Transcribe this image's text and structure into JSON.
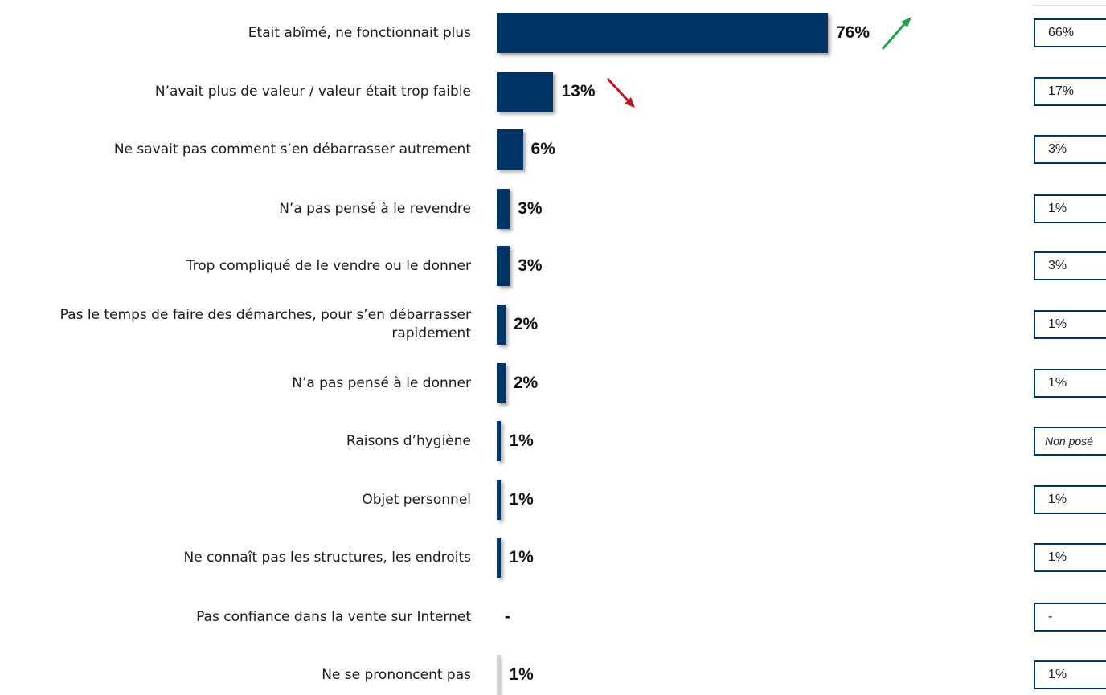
{
  "chart_data": {
    "type": "bar",
    "orientation": "horizontal",
    "categories": [
      "Etait abîmé, ne fonctionnait plus",
      "N’avait plus de valeur / valeur était trop faible",
      "Ne savait pas comment s’en débarrasser autrement",
      "N’a pas pensé à le revendre",
      "Trop compliqué de le vendre ou le donner",
      "Pas le temps de faire des démarches, pour s’en débarrasser rapidement",
      "N’a pas pensé à le donner",
      "Raisons d’hygiène",
      "Objet personnel",
      "Ne connaît pas les structures, les endroits",
      "Pas confiance dans la vente sur Internet",
      "Ne se prononcent pas"
    ],
    "values": [
      76,
      13,
      6,
      3,
      3,
      2,
      2,
      1,
      1,
      1,
      null,
      1
    ],
    "value_labels": [
      "76%",
      "13%",
      "6%",
      "3%",
      "3%",
      "2%",
      "2%",
      "1%",
      "1%",
      "1%",
      "-",
      "1%"
    ],
    "comparison_labels": [
      "66%",
      "17%",
      "3%",
      "1%",
      "3%",
      "1%",
      "1%",
      "Non posé",
      "1%",
      "1%",
      "-",
      "1%"
    ],
    "trend": [
      "up",
      "down",
      null,
      null,
      null,
      null,
      null,
      null,
      null,
      null,
      null,
      null
    ],
    "xlim": [
      0,
      76
    ],
    "grid": false,
    "colors": {
      "bar": "#003366",
      "bar_no_opinion": "#cfcfcf",
      "box_border": "#003366",
      "trend_up": "#1aa64a",
      "trend_down": "#c0161c"
    }
  }
}
